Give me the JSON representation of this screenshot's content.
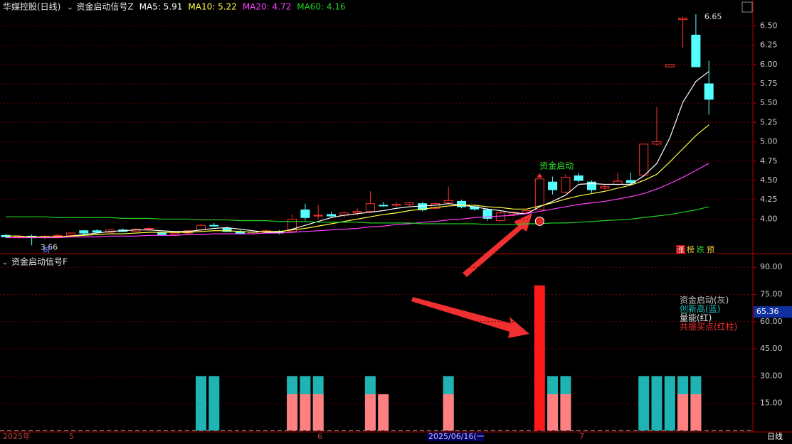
{
  "chart_data": [
    {
      "type": "candlestick",
      "title": "华媒控股(日线)",
      "indicator": "资金启动信号Z",
      "series": [
        {
          "name": "MA5: 5.91",
          "color": "#ffffff",
          "values": [
            3.78,
            3.78,
            3.77,
            3.77,
            3.77,
            3.78,
            3.8,
            3.82,
            3.84,
            3.85,
            3.86,
            3.86,
            3.85,
            3.84,
            3.84,
            3.86,
            3.88,
            3.89,
            3.87,
            3.85,
            3.83,
            3.83,
            3.87,
            3.92,
            3.97,
            4.02,
            4.05,
            4.07,
            4.09,
            4.11,
            4.14,
            4.16,
            4.17,
            4.18,
            4.2,
            4.18,
            4.16,
            4.13,
            4.11,
            4.08,
            4.07,
            4.16,
            4.23,
            4.31,
            4.45,
            4.46,
            4.45,
            4.45,
            4.45,
            4.56,
            4.72,
            5.05,
            5.51,
            5.78,
            5.91
          ]
        },
        {
          "name": "MA10: 5.22",
          "color": "#ffff40",
          "values": [
            3.78,
            3.78,
            3.77,
            3.77,
            3.77,
            3.78,
            3.79,
            3.8,
            3.81,
            3.81,
            3.82,
            3.83,
            3.83,
            3.83,
            3.83,
            3.84,
            3.85,
            3.85,
            3.84,
            3.83,
            3.84,
            3.84,
            3.86,
            3.88,
            3.91,
            3.94,
            3.97,
            4.0,
            4.03,
            4.06,
            4.08,
            4.11,
            4.13,
            4.15,
            4.17,
            4.18,
            4.18,
            4.16,
            4.15,
            4.13,
            4.13,
            4.17,
            4.21,
            4.26,
            4.3,
            4.33,
            4.36,
            4.4,
            4.44,
            4.5,
            4.58,
            4.74,
            4.91,
            5.08,
            5.22
          ]
        },
        {
          "name": "MA20: 4.72",
          "color": "#ff40ff",
          "values": [
            3.76,
            3.76,
            3.76,
            3.76,
            3.76,
            3.77,
            3.77,
            3.77,
            3.78,
            3.78,
            3.78,
            3.79,
            3.79,
            3.79,
            3.8,
            3.8,
            3.81,
            3.81,
            3.81,
            3.81,
            3.82,
            3.82,
            3.83,
            3.84,
            3.85,
            3.86,
            3.87,
            3.88,
            3.9,
            3.91,
            3.93,
            3.94,
            3.96,
            3.97,
            3.99,
            4.0,
            4.02,
            4.03,
            4.04,
            4.05,
            4.07,
            4.1,
            4.13,
            4.16,
            4.19,
            4.21,
            4.23,
            4.26,
            4.29,
            4.33,
            4.39,
            4.46,
            4.54,
            4.63,
            4.72
          ]
        },
        {
          "name": "MA60: 4.16",
          "color": "#20d020",
          "values": [
            4.03,
            4.03,
            4.03,
            4.03,
            4.02,
            4.02,
            4.02,
            4.02,
            4.02,
            4.01,
            4.01,
            4.01,
            4.0,
            4.0,
            4.0,
            3.99,
            3.99,
            3.99,
            3.98,
            3.98,
            3.98,
            3.97,
            3.97,
            3.97,
            3.96,
            3.96,
            3.96,
            3.96,
            3.95,
            3.95,
            3.95,
            3.95,
            3.94,
            3.94,
            3.94,
            3.94,
            3.94,
            3.93,
            3.93,
            3.93,
            3.94,
            3.94,
            3.95,
            3.95,
            3.96,
            3.97,
            3.98,
            3.99,
            4.0,
            4.02,
            4.04,
            4.06,
            4.09,
            4.12,
            4.16
          ]
        }
      ],
      "ohlc": [
        [
          3.79,
          3.81,
          3.76,
          3.77
        ],
        [
          3.77,
          3.79,
          3.74,
          3.78
        ],
        [
          3.78,
          3.8,
          3.66,
          3.76
        ],
        [
          3.76,
          3.79,
          3.74,
          3.78
        ],
        [
          3.78,
          3.81,
          3.76,
          3.79
        ],
        [
          3.79,
          3.83,
          3.77,
          3.82
        ],
        [
          3.85,
          3.86,
          3.8,
          3.82
        ],
        [
          3.85,
          3.87,
          3.82,
          3.83
        ],
        [
          3.83,
          3.87,
          3.82,
          3.86
        ],
        [
          3.86,
          3.88,
          3.83,
          3.84
        ],
        [
          3.84,
          3.88,
          3.83,
          3.87
        ],
        [
          3.87,
          3.9,
          3.85,
          3.88
        ],
        [
          3.82,
          3.84,
          3.79,
          3.8
        ],
        [
          3.8,
          3.83,
          3.78,
          3.82
        ],
        [
          3.82,
          3.86,
          3.8,
          3.85
        ],
        [
          3.86,
          3.94,
          3.84,
          3.92
        ],
        [
          3.92,
          3.95,
          3.9,
          3.91
        ],
        [
          3.88,
          3.9,
          3.83,
          3.84
        ],
        [
          3.84,
          3.86,
          3.8,
          3.81
        ],
        [
          3.81,
          3.84,
          3.79,
          3.83
        ],
        [
          3.83,
          3.86,
          3.82,
          3.85
        ],
        [
          3.84,
          3.86,
          3.8,
          3.82
        ],
        [
          3.84,
          4.06,
          3.82,
          4.0
        ],
        [
          4.12,
          4.2,
          3.98,
          4.02
        ],
        [
          4.04,
          4.18,
          4.0,
          4.05
        ],
        [
          4.06,
          4.1,
          4.02,
          4.04
        ],
        [
          4.05,
          4.1,
          4.02,
          4.08
        ],
        [
          4.08,
          4.14,
          4.05,
          4.1
        ],
        [
          4.1,
          4.36,
          4.08,
          4.2
        ],
        [
          4.18,
          4.22,
          4.16,
          4.17
        ],
        [
          4.18,
          4.22,
          4.16,
          4.19
        ],
        [
          4.19,
          4.22,
          4.17,
          4.21
        ],
        [
          4.2,
          4.22,
          4.1,
          4.12
        ],
        [
          4.14,
          4.22,
          4.12,
          4.2
        ],
        [
          4.21,
          4.42,
          4.19,
          4.24
        ],
        [
          4.23,
          4.25,
          4.14,
          4.16
        ],
        [
          4.16,
          4.18,
          4.11,
          4.13
        ],
        [
          4.12,
          4.14,
          3.98,
          4.01
        ],
        [
          3.98,
          4.1,
          3.97,
          4.08
        ],
        [
          4.06,
          4.1,
          4.04,
          4.09
        ],
        [
          4.09,
          4.12,
          4.07,
          4.11
        ],
        [
          4.12,
          4.52,
          4.12,
          4.52
        ],
        [
          4.48,
          4.55,
          4.32,
          4.38
        ],
        [
          4.35,
          4.58,
          4.33,
          4.54
        ],
        [
          4.56,
          4.6,
          4.48,
          4.5
        ],
        [
          4.48,
          4.5,
          4.34,
          4.38
        ],
        [
          4.4,
          4.44,
          4.38,
          4.42
        ],
        [
          4.45,
          4.6,
          4.43,
          4.49
        ],
        [
          4.5,
          4.6,
          4.45,
          4.47
        ],
        [
          4.57,
          4.97,
          4.55,
          4.97
        ],
        [
          4.97,
          5.45,
          4.95,
          5.0
        ],
        [
          5.97,
          6.0,
          5.97,
          6.0
        ],
        [
          6.58,
          6.62,
          6.22,
          6.6
        ],
        [
          6.38,
          6.65,
          5.97,
          5.97
        ],
        [
          5.75,
          6.05,
          5.35,
          5.55
        ]
      ],
      "up_color": "#ff3232",
      "down_color": "#54ffff",
      "ylim": [
        3.6,
        6.65
      ],
      "yticks": [
        {
          "value": 4,
          "label": "4.00"
        },
        {
          "value": 4.25,
          "label": "4.25"
        },
        {
          "value": 4.5,
          "label": "4.50"
        },
        {
          "value": 4.75,
          "label": "4.75"
        },
        {
          "value": 5,
          "label": "5.00"
        },
        {
          "value": 5.25,
          "label": "5.25"
        },
        {
          "value": 5.5,
          "label": "5.50"
        },
        {
          "value": 5.75,
          "label": "5.75"
        },
        {
          "value": 6,
          "label": "6.00"
        },
        {
          "value": 6.25,
          "label": "6.25"
        },
        {
          "value": 6.5,
          "label": "6.50"
        }
      ],
      "grid": true,
      "high_label": 6.65,
      "low_label": 3.66,
      "signal_label": "资金启动",
      "tag": "财",
      "badges": [
        "涨",
        "榜",
        "跌",
        "预"
      ]
    },
    {
      "type": "bar",
      "title": "资金启动信号F",
      "series": [
        {
          "name": "创新高",
          "color": "#1fb3b3",
          "values": [
            null,
            null,
            null,
            null,
            null,
            null,
            null,
            null,
            null,
            null,
            null,
            null,
            null,
            null,
            null,
            30,
            30,
            null,
            null,
            null,
            null,
            null,
            30,
            30,
            30,
            null,
            null,
            null,
            30,
            null,
            null,
            null,
            null,
            null,
            30,
            null,
            null,
            null,
            null,
            null,
            null,
            null,
            30,
            30,
            null,
            null,
            null,
            null,
            null,
            30,
            30,
            30,
            30,
            30,
            null
          ]
        },
        {
          "name": "量能",
          "color": "#ff8080",
          "values": [
            null,
            null,
            null,
            null,
            null,
            null,
            null,
            null,
            null,
            null,
            null,
            null,
            null,
            null,
            null,
            null,
            null,
            null,
            null,
            null,
            null,
            null,
            20,
            20,
            20,
            null,
            null,
            null,
            20,
            20,
            null,
            null,
            null,
            null,
            20,
            null,
            null,
            null,
            null,
            null,
            null,
            null,
            20,
            20,
            null,
            null,
            null,
            null,
            null,
            null,
            null,
            null,
            20,
            20,
            null
          ]
        },
        {
          "name": "共振买点",
          "color": "#ff1a1a",
          "values": [
            null,
            null,
            null,
            null,
            null,
            null,
            null,
            null,
            null,
            null,
            null,
            null,
            null,
            null,
            null,
            null,
            null,
            null,
            null,
            null,
            null,
            null,
            null,
            null,
            null,
            null,
            null,
            null,
            null,
            null,
            null,
            null,
            null,
            null,
            null,
            null,
            null,
            null,
            null,
            null,
            null,
            80,
            null,
            null,
            null,
            null,
            null,
            null,
            null,
            null,
            null,
            null,
            null,
            null,
            null
          ]
        }
      ],
      "legend": [
        {
          "text": "资金启动(灰)",
          "color": "#c0c0c0"
        },
        {
          "text": "创新高(蓝)",
          "color": "#20c0c0"
        },
        {
          "text": "量能(红)",
          "color": "#e0e0e0"
        },
        {
          "text": "共振买点(红柱)",
          "color": "#ff3030"
        }
      ],
      "ylim": [
        0,
        96
      ],
      "yticks": [
        {
          "value": 15,
          "label": "15.00"
        },
        {
          "value": 30,
          "label": "30.00"
        },
        {
          "value": 45,
          "label": "45.00"
        },
        {
          "value": 60,
          "label": "60.00"
        },
        {
          "value": 75,
          "label": "75.00"
        },
        {
          "value": 90,
          "label": "90.00"
        }
      ],
      "current_value": 65.36,
      "grid": true
    }
  ],
  "x_axis": {
    "labels": [
      "2025年",
      "5",
      "6",
      "2025/06/16(一",
      "7"
    ],
    "period": "日线"
  }
}
